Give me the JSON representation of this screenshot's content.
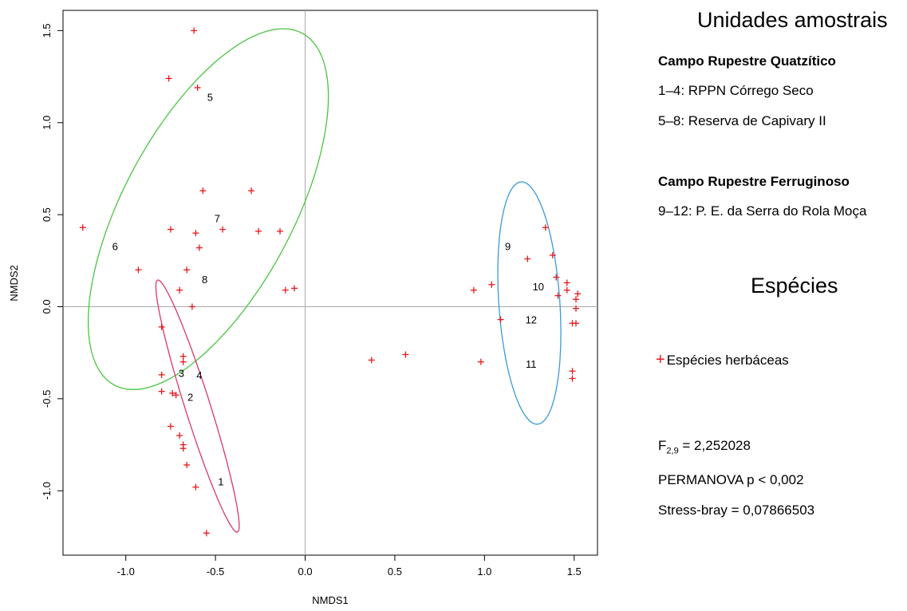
{
  "chart_data": {
    "type": "scatter",
    "xlabel": "NMDS1",
    "ylabel": "NMDS2",
    "xlim": [
      -1.35,
      1.63
    ],
    "ylim": [
      -1.35,
      1.61
    ],
    "xticks": [
      -1.0,
      -0.5,
      0.0,
      0.5,
      1.0,
      1.5
    ],
    "xtick_labels": [
      "-1.0",
      "-0.5",
      "0.0",
      "0.5",
      "1.0",
      "1.5"
    ],
    "yticks": [
      -1.0,
      -0.5,
      0.0,
      0.5,
      1.0,
      1.5
    ],
    "ytick_labels": [
      "-1.0",
      "-0.5",
      "0.0",
      "0.5",
      "1.0",
      "1.5"
    ],
    "reference_lines": {
      "x": 0,
      "y": 0
    },
    "species_series": {
      "name": "Espécies herbáceas",
      "color": "#e8181c",
      "marker": "+",
      "points": [
        [
          -0.62,
          1.5
        ],
        [
          -0.76,
          1.24
        ],
        [
          -0.6,
          1.19
        ],
        [
          -0.57,
          0.63
        ],
        [
          -0.3,
          0.63
        ],
        [
          -1.24,
          0.43
        ],
        [
          -0.75,
          0.42
        ],
        [
          -0.46,
          0.42
        ],
        [
          -0.26,
          0.41
        ],
        [
          -0.14,
          0.41
        ],
        [
          -0.61,
          0.4
        ],
        [
          -0.59,
          0.32
        ],
        [
          -0.66,
          0.2
        ],
        [
          -0.93,
          0.2
        ],
        [
          -0.7,
          0.09
        ],
        [
          -0.11,
          0.09
        ],
        [
          -0.06,
          0.1
        ],
        [
          -0.63,
          0.0
        ],
        [
          -0.8,
          -0.11
        ],
        [
          -0.68,
          -0.27
        ],
        [
          -0.68,
          -0.3
        ],
        [
          -0.8,
          -0.37
        ],
        [
          -0.8,
          -0.46
        ],
        [
          -0.74,
          -0.47
        ],
        [
          -0.72,
          -0.48
        ],
        [
          -0.75,
          -0.65
        ],
        [
          -0.7,
          -0.7
        ],
        [
          -0.68,
          -0.75
        ],
        [
          -0.68,
          -0.77
        ],
        [
          -0.66,
          -0.86
        ],
        [
          -0.61,
          -0.98
        ],
        [
          -0.55,
          -1.23
        ],
        [
          0.37,
          -0.29
        ],
        [
          0.56,
          -0.26
        ],
        [
          0.98,
          -0.3
        ],
        [
          1.09,
          -0.07
        ],
        [
          0.94,
          0.09
        ],
        [
          1.04,
          0.12
        ],
        [
          1.24,
          0.26
        ],
        [
          1.34,
          0.43
        ],
        [
          1.38,
          0.28
        ],
        [
          1.4,
          0.16
        ],
        [
          1.41,
          0.06
        ],
        [
          1.46,
          0.13
        ],
        [
          1.46,
          0.09
        ],
        [
          1.52,
          0.07
        ],
        [
          1.51,
          0.04
        ],
        [
          1.51,
          -0.01
        ],
        [
          1.49,
          -0.09
        ],
        [
          1.51,
          -0.09
        ],
        [
          1.49,
          -0.35
        ],
        [
          1.49,
          -0.39
        ]
      ]
    },
    "site_labels": [
      {
        "label": "1",
        "x": -0.47,
        "y": -0.95
      },
      {
        "label": "2",
        "x": -0.64,
        "y": -0.49
      },
      {
        "label": "3",
        "x": -0.69,
        "y": -0.36
      },
      {
        "label": "4",
        "x": -0.59,
        "y": -0.37
      },
      {
        "label": "5",
        "x": -0.53,
        "y": 1.14
      },
      {
        "label": "6",
        "x": -1.06,
        "y": 0.33
      },
      {
        "label": "7",
        "x": -0.49,
        "y": 0.48
      },
      {
        "label": "8",
        "x": -0.56,
        "y": 0.15
      },
      {
        "label": "9",
        "x": 1.13,
        "y": 0.33
      },
      {
        "label": "10",
        "x": 1.3,
        "y": 0.11
      },
      {
        "label": "11",
        "x": 1.26,
        "y": -0.31
      },
      {
        "label": "12",
        "x": 1.26,
        "y": -0.07
      }
    ],
    "ellipses": [
      {
        "color": "#4cc441",
        "cx": -0.54,
        "cy": 0.53,
        "rx": 1.09,
        "ry": 0.47,
        "angle_deg": 61
      },
      {
        "color": "#d9386a",
        "cx": -0.6,
        "cy": -0.54,
        "rx": 0.72,
        "ry": 0.07,
        "angle_deg": -72
      },
      {
        "color": "#3b9ad9",
        "cx": 1.25,
        "cy": 0.02,
        "rx": 0.66,
        "ry": 0.17,
        "angle_deg": -86
      }
    ]
  },
  "legend": {
    "title": "Unidades amostrais",
    "group1_title": "Campo Rupestre Quatzítico",
    "group1_items": [
      "1–4: RPPN Córrego Seco",
      "5–8: Reserva de Capivary II"
    ],
    "group2_title": "Campo Rupestre Ferruginoso",
    "group2_items": [
      "9–12: P. E. da Serra do Rola Moça"
    ],
    "species_title": "Espécies",
    "species_mark": "+",
    "species_label": "Espécies herbáceas"
  },
  "stats": {
    "f_base": "F",
    "f_sub": "2,9",
    "f_value": " = 2,252028",
    "permanova": "PERMANOVA p < 0,002",
    "stress": "Stress-bray = 0,07866503"
  }
}
